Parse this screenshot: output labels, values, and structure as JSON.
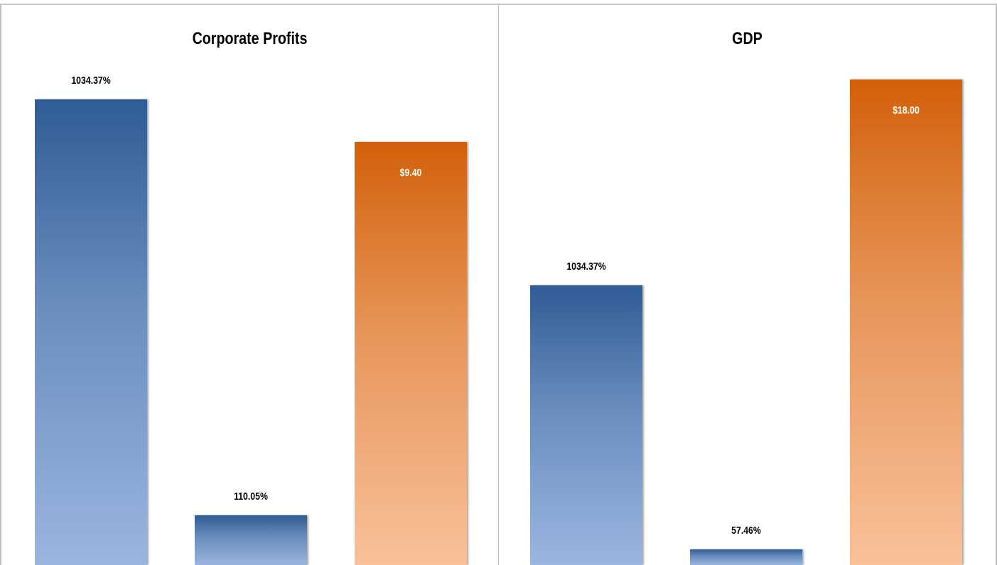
{
  "chart_data": [
    {
      "type": "bar",
      "title": "Corporate Profits",
      "xlabel": "",
      "ylabel": "",
      "legend": "none",
      "grid": false,
      "bars": [
        {
          "value": 1034.37,
          "label": "1034.37%",
          "color_top": "#2f5c95",
          "color_bottom": "#9ab6df",
          "label_position": "above",
          "label_color": "#000000"
        },
        {
          "value": 110.05,
          "label": "110.05%",
          "color_top": "#2f5c95",
          "color_bottom": "#9ab6df",
          "label_position": "above",
          "label_color": "#000000"
        },
        {
          "value": 9.4,
          "label": "$9.40",
          "color_top": "#d2600a",
          "color_bottom": "#f9c19a",
          "label_position": "inside",
          "label_color": "#ffffff"
        }
      ]
    },
    {
      "type": "bar",
      "title": "GDP",
      "xlabel": "",
      "ylabel": "",
      "legend": "none",
      "grid": false,
      "bars": [
        {
          "value": 1034.37,
          "label": "1034.37%",
          "color_top": "#2f5c95",
          "color_bottom": "#9ab6df",
          "label_position": "above",
          "label_color": "#000000"
        },
        {
          "value": 57.46,
          "label": "57.46%",
          "color_top": "#2f5c95",
          "color_bottom": "#9ab6df",
          "label_position": "above",
          "label_color": "#000000"
        },
        {
          "value": 18.0,
          "label": "$18.00",
          "color_top": "#d2600a",
          "color_bottom": "#f9c19a",
          "label_position": "inside",
          "label_color": "#ffffff"
        }
      ]
    }
  ]
}
